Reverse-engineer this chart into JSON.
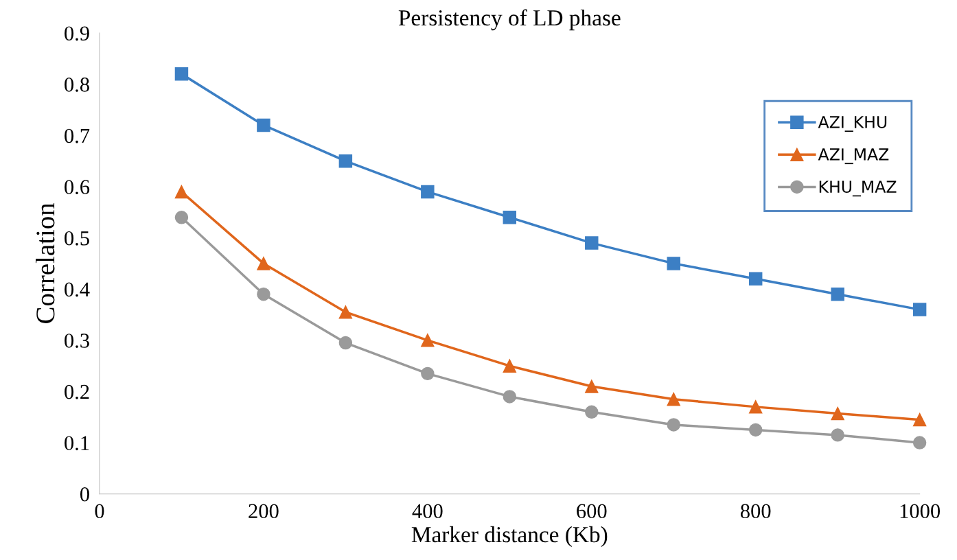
{
  "chart_data": {
    "type": "line",
    "title": "Persistency of LD phase",
    "xlabel": "Marker distance (Kb)",
    "ylabel": "Correlation",
    "x": [
      100,
      200,
      300,
      400,
      500,
      600,
      700,
      800,
      900,
      1000
    ],
    "series": [
      {
        "name": "AZI_KHU",
        "color": "#3c7fc4",
        "marker": "square",
        "values": [
          0.82,
          0.72,
          0.65,
          0.59,
          0.54,
          0.49,
          0.45,
          0.42,
          0.39,
          0.36
        ]
      },
      {
        "name": "AZI_MAZ",
        "color": "#e0661c",
        "marker": "triangle",
        "values": [
          0.59,
          0.45,
          0.355,
          0.3,
          0.25,
          0.21,
          0.185,
          0.17,
          0.157,
          0.145
        ]
      },
      {
        "name": "KHU_MAZ",
        "color": "#9a9a9a",
        "marker": "circle",
        "values": [
          0.54,
          0.39,
          0.295,
          0.235,
          0.19,
          0.16,
          0.135,
          0.125,
          0.115,
          0.1
        ]
      }
    ],
    "xlim": [
      0,
      1000
    ],
    "xticks": [
      0,
      200,
      400,
      600,
      800,
      1000
    ],
    "ylim": [
      0,
      0.9
    ],
    "yticks": [
      0,
      0.1,
      0.2,
      0.3,
      0.4,
      0.5,
      0.6,
      0.7,
      0.8,
      0.9
    ],
    "grid": false,
    "legend": "top right",
    "line_style": "solid"
  }
}
